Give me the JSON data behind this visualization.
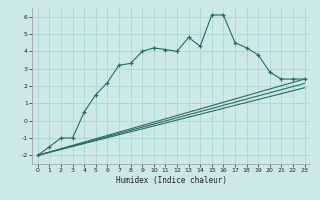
{
  "xlabel": "Humidex (Indice chaleur)",
  "xlim": [
    -0.5,
    23.5
  ],
  "ylim": [
    -2.5,
    6.5
  ],
  "xticks": [
    0,
    1,
    2,
    3,
    4,
    5,
    6,
    7,
    8,
    9,
    10,
    11,
    12,
    13,
    14,
    15,
    16,
    17,
    18,
    19,
    20,
    21,
    22,
    23
  ],
  "yticks": [
    -2,
    -1,
    0,
    1,
    2,
    3,
    4,
    5,
    6
  ],
  "bg_color": "#cce8e8",
  "line_color": "#2a6b65",
  "grid_color": "#b0d8d8",
  "line1_x": [
    0,
    1,
    2,
    3,
    4,
    5,
    6,
    7,
    8,
    9,
    10,
    11,
    12,
    13,
    14,
    15,
    16,
    17,
    18,
    19,
    20,
    21,
    22,
    23
  ],
  "line1_y": [
    -2.0,
    -1.5,
    -1.0,
    -1.0,
    0.5,
    1.5,
    2.2,
    3.2,
    3.3,
    4.0,
    4.2,
    4.1,
    4.0,
    4.8,
    4.3,
    6.1,
    6.1,
    4.5,
    4.2,
    3.8,
    2.8,
    2.4,
    2.4,
    2.4
  ],
  "line2_x": [
    0,
    23
  ],
  "line2_y": [
    -2.0,
    2.4
  ],
  "line3_x": [
    0,
    23
  ],
  "line3_y": [
    -2.0,
    2.15
  ],
  "line4_x": [
    0,
    23
  ],
  "line4_y": [
    -2.0,
    1.9
  ]
}
